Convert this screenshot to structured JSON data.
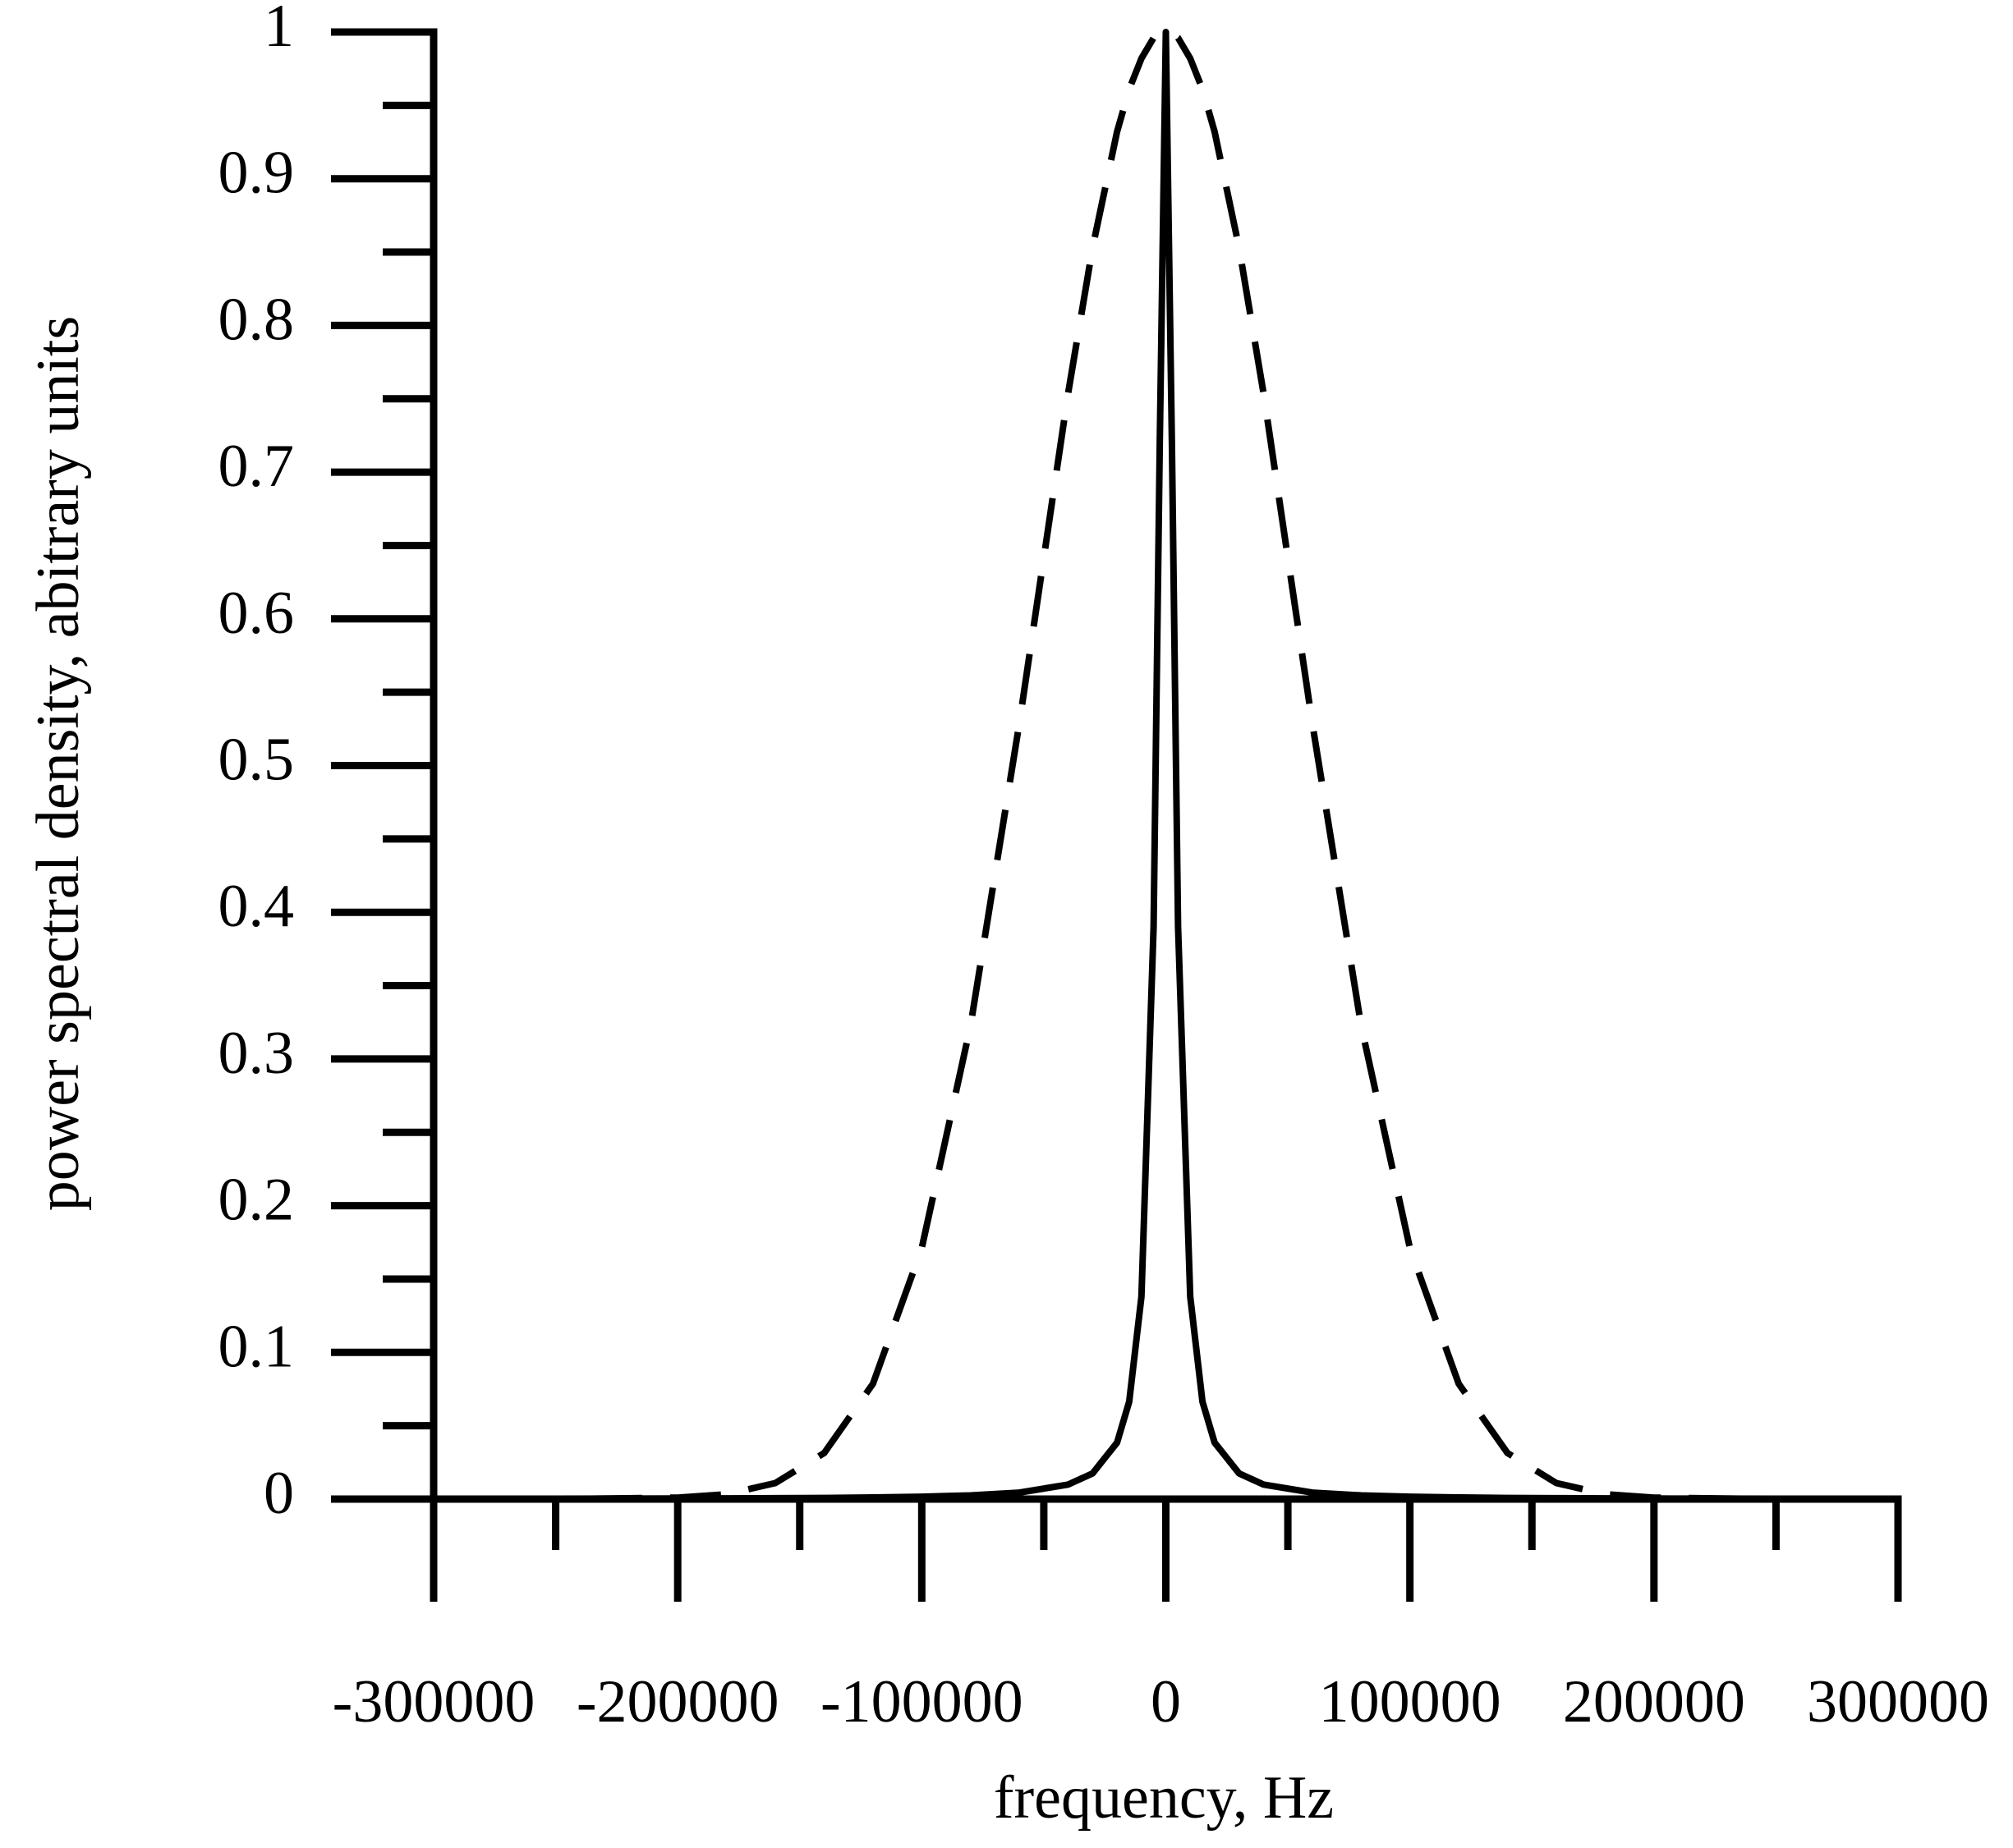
{
  "chart_data": {
    "type": "line",
    "x_label": "frequency, Hz",
    "y_label": "power spectral density, abitrary units",
    "x": [
      -300000,
      -250000,
      -200000,
      -180000,
      -160000,
      -140000,
      -120000,
      -100000,
      -80000,
      -60000,
      -40000,
      -30000,
      -20000,
      -15000,
      -10000,
      -5000,
      -2500,
      0,
      2500,
      5000,
      10000,
      15000,
      20000,
      30000,
      40000,
      60000,
      80000,
      100000,
      120000,
      140000,
      160000,
      180000,
      200000,
      250000,
      300000
    ],
    "series": [
      {
        "color": "#000000",
        "dash": true,
        "values": [
          0,
          0,
          0.001,
          0.0033,
          0.0109,
          0.0314,
          0.0786,
          0.171,
          0.323,
          0.529,
          0.754,
          0.853,
          0.932,
          0.961,
          0.982,
          0.996,
          0.999,
          1,
          0.999,
          0.996,
          0.982,
          0.961,
          0.932,
          0.853,
          0.754,
          0.529,
          0.323,
          0.171,
          0.0786,
          0.0314,
          0.0109,
          0.0033,
          0.001,
          0,
          0
        ]
      },
      {
        "color": "#000000",
        "dash": false,
        "values": [
          0.00018,
          0.00026,
          0.0004,
          0.0005,
          0.0006,
          0.0008,
          0.0011,
          0.0016,
          0.0025,
          0.0044,
          0.0099,
          0.0175,
          0.0385,
          0.0664,
          0.138,
          0.39,
          0.719,
          1,
          0.719,
          0.39,
          0.138,
          0.0664,
          0.0385,
          0.0175,
          0.0099,
          0.0044,
          0.0025,
          0.0016,
          0.0011,
          0.0008,
          0.0006,
          0.0005,
          0.0004,
          0.00026,
          0.00018
        ]
      }
    ],
    "xlim": [
      -300000,
      300000
    ],
    "xticks": [
      -300000,
      -200000,
      -100000,
      0,
      100000,
      200000,
      300000
    ],
    "xminorticks": [
      -250000,
      -150000,
      -50000,
      50000,
      150000,
      250000
    ],
    "ylim": [
      0,
      1
    ],
    "yticks": [
      0,
      0.1,
      0.2,
      0.3,
      0.4,
      0.5,
      0.6,
      0.7,
      0.8,
      0.9,
      1
    ],
    "yminorticks": [
      0.05,
      0.15,
      0.25,
      0.35,
      0.45,
      0.55,
      0.65,
      0.75,
      0.85,
      0.95
    ],
    "grid": false
  }
}
